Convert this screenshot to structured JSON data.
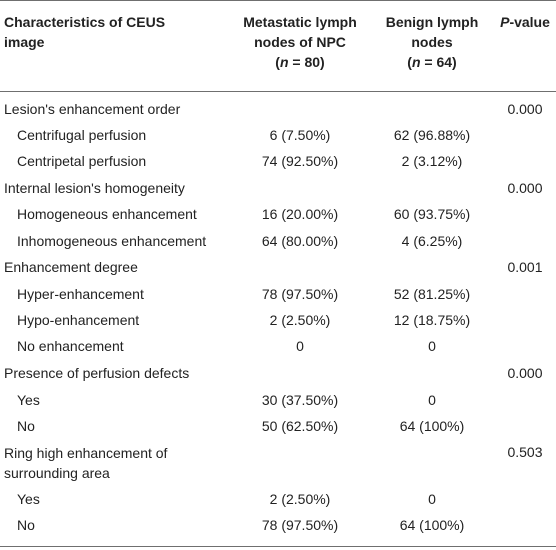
{
  "header": {
    "col1_line1": "Characteristics of CEUS",
    "col1_line2": "image",
    "col2_line1": "Metastatic lymph",
    "col2_line2": "nodes of NPC",
    "col2_n_var": "n",
    "col2_n_val": " = 80)",
    "col3_line1": "Benign lymph",
    "col3_line2": "nodes",
    "col3_n_var": "n",
    "col3_n_val": " = 64)",
    "col4_p": "P",
    "col4_rest": "-value"
  },
  "rows": [
    {
      "label": "Lesion's enhancement order",
      "metastatic": "",
      "benign": "",
      "p": "0.000"
    },
    {
      "label": "Centrifugal perfusion",
      "metastatic": "6 (7.50%)",
      "benign": "62 (96.88%)",
      "p": ""
    },
    {
      "label": "Centripetal perfusion",
      "metastatic": "74 (92.50%)",
      "benign": "2 (3.12%)",
      "p": ""
    },
    {
      "label": "Internal lesion's homogeneity",
      "metastatic": "",
      "benign": "",
      "p": "0.000"
    },
    {
      "label": "Homogeneous enhancement",
      "metastatic": "16 (20.00%)",
      "benign": "60 (93.75%)",
      "p": ""
    },
    {
      "label": "Inhomogeneous enhancement",
      "metastatic": "64 (80.00%)",
      "benign": "4 (6.25%)",
      "p": ""
    },
    {
      "label": "Enhancement degree",
      "metastatic": "",
      "benign": "",
      "p": "0.001"
    },
    {
      "label": "Hyper-enhancement",
      "metastatic": "78 (97.50%)",
      "benign": "52 (81.25%)",
      "p": ""
    },
    {
      "label": "Hypo-enhancement",
      "metastatic": "2 (2.50%)",
      "benign": "12 (18.75%)",
      "p": ""
    },
    {
      "label": "No enhancement",
      "metastatic": "0",
      "benign": "0",
      "p": ""
    },
    {
      "label": "Presence of perfusion defects",
      "metastatic": "",
      "benign": "",
      "p": "0.000"
    },
    {
      "label": "Yes",
      "metastatic": "30 (37.50%)",
      "benign": "0",
      "p": ""
    },
    {
      "label": "No",
      "metastatic": "50 (62.50%)",
      "benign": "64 (100%)",
      "p": ""
    },
    {
      "label_line1": "Ring high enhancement of",
      "label_line2": "surrounding area",
      "metastatic": "",
      "benign": "",
      "p": "0.503"
    },
    {
      "label": "Yes",
      "metastatic": "2 (2.50%)",
      "benign": "0",
      "p": ""
    },
    {
      "label": "No",
      "metastatic": "78 (97.50%)",
      "benign": "64 (100%)",
      "p": ""
    }
  ]
}
